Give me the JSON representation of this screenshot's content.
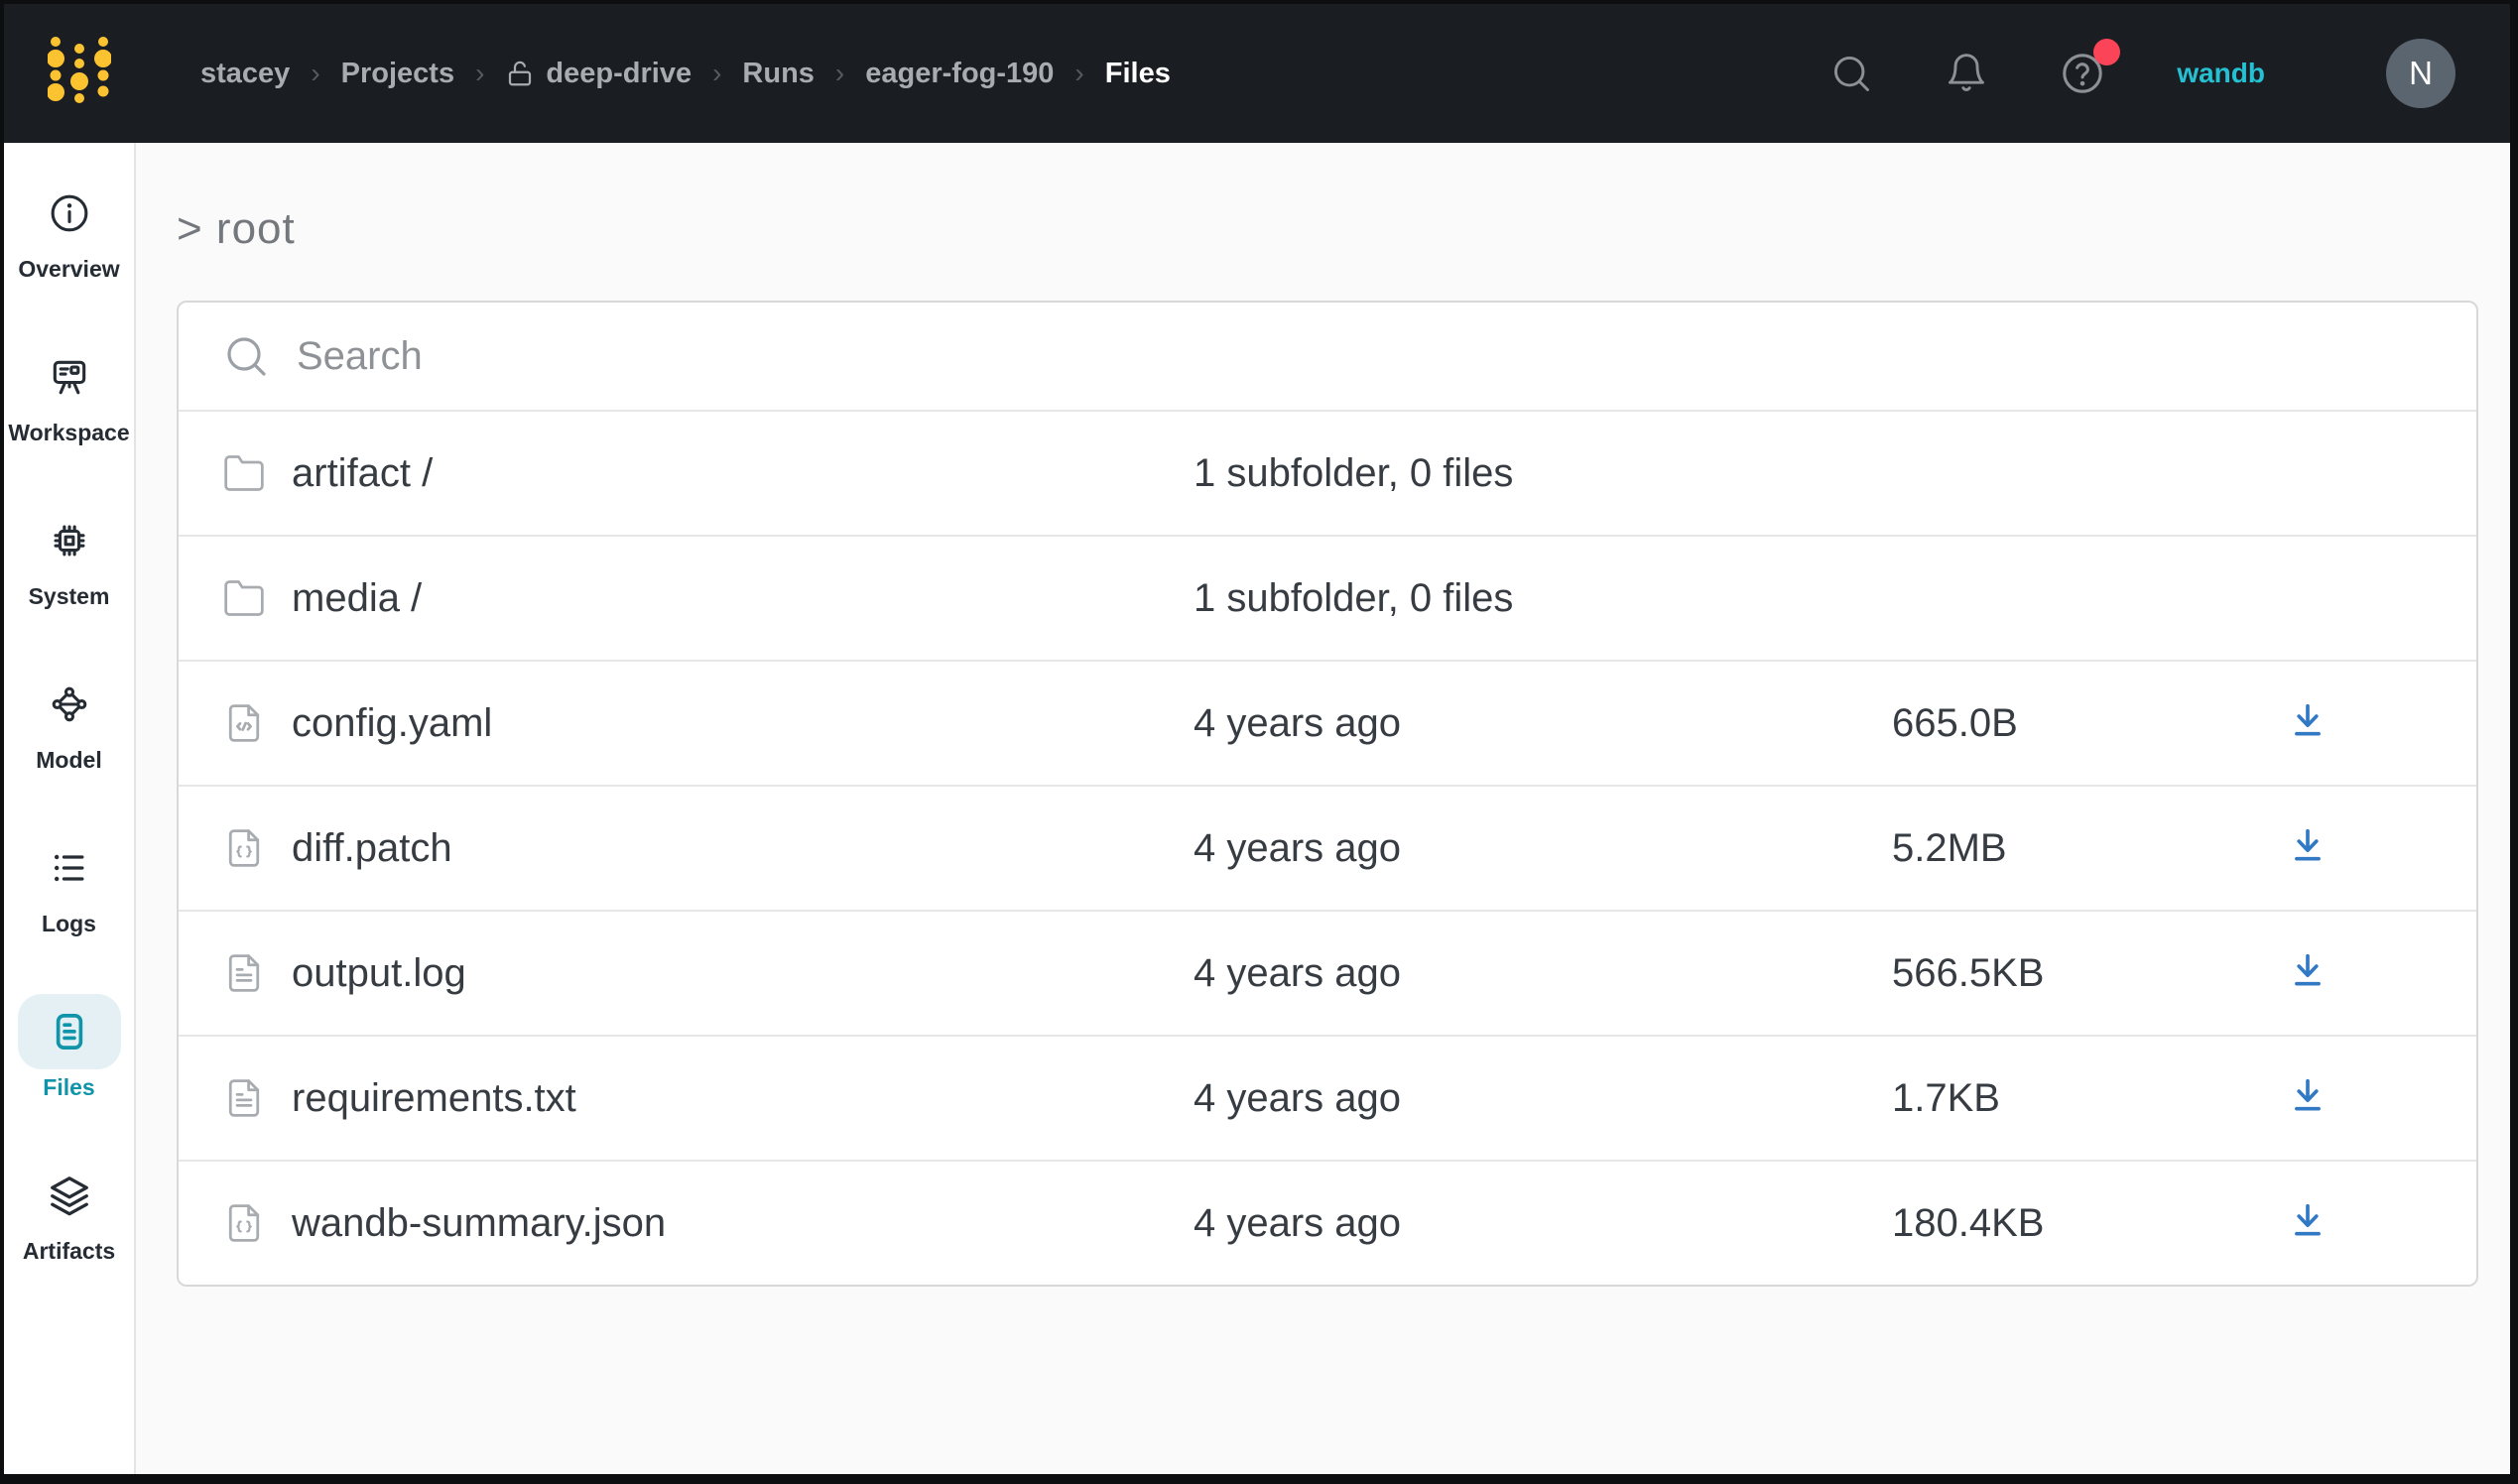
{
  "topbar": {
    "separator": "›",
    "breadcrumb": [
      {
        "label": "stacey"
      },
      {
        "label": "Projects"
      },
      {
        "label": "deep-drive",
        "lock": true
      },
      {
        "label": "Runs"
      },
      {
        "label": "eager-fog-190"
      },
      {
        "label": "Files",
        "current": true
      }
    ],
    "icons": [
      "search-icon",
      "bell-icon",
      "help-icon"
    ],
    "help_has_notification_dot": true,
    "org_link": "wandb",
    "avatar_initial": "N"
  },
  "sidebar": {
    "items": [
      {
        "label": "Overview",
        "icon": "info",
        "active": false
      },
      {
        "label": "Workspace",
        "icon": "workspace",
        "active": false
      },
      {
        "label": "System",
        "icon": "system",
        "active": false
      },
      {
        "label": "Model",
        "icon": "model",
        "active": false
      },
      {
        "label": "Logs",
        "icon": "logs",
        "active": false
      },
      {
        "label": "Files",
        "icon": "files",
        "active": true
      },
      {
        "label": "Artifacts",
        "icon": "artifacts",
        "active": false
      }
    ]
  },
  "main": {
    "root_path": "> root",
    "search_placeholder": "Search",
    "files": [
      {
        "name": "artifact /",
        "icon": "folder",
        "meta": "1 subfolder, 0 files",
        "size": "",
        "download": false
      },
      {
        "name": "media /",
        "icon": "folder",
        "meta": "1 subfolder, 0 files",
        "size": "",
        "download": false
      },
      {
        "name": "config.yaml",
        "icon": "file-code",
        "meta": "4 years ago",
        "size": "665.0B",
        "download": true
      },
      {
        "name": "diff.patch",
        "icon": "file-braces",
        "meta": "4 years ago",
        "size": "5.2MB",
        "download": true
      },
      {
        "name": "output.log",
        "icon": "file-text",
        "meta": "4 years ago",
        "size": "566.5KB",
        "download": true
      },
      {
        "name": "requirements.txt",
        "icon": "file-text",
        "meta": "4 years ago",
        "size": "1.7KB",
        "download": true
      },
      {
        "name": "wandb-summary.json",
        "icon": "file-braces",
        "meta": "4 years ago",
        "size": "180.4KB",
        "download": true
      }
    ]
  },
  "colors": {
    "topbar_bg": "#1a1d21",
    "accent_teal": "#1094a9",
    "topbar_link_cyan": "#25c1d3",
    "download_blue": "#3279c5",
    "logo_yellow": "#fcc331",
    "notification_red": "#fb4457"
  }
}
